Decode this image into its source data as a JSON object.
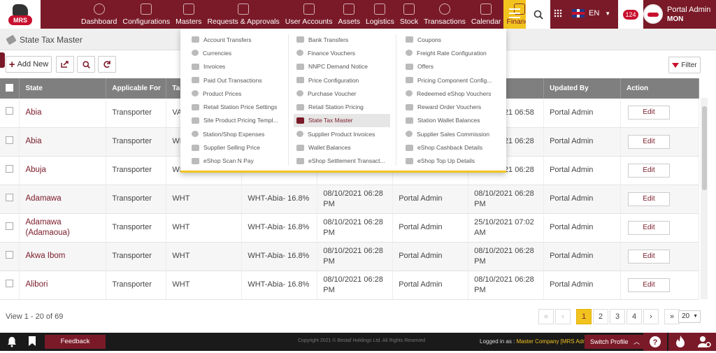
{
  "nav": {
    "items": [
      "Dashboard",
      "Configurations",
      "Masters",
      "Requests & Approvals",
      "User Accounts",
      "Assets",
      "Logistics",
      "Stock",
      "Transactions",
      "Calendar",
      "Finance"
    ],
    "active": "Finance",
    "lang": "EN",
    "notif_count": "124",
    "user_name": "Portal Admin",
    "user_role": "MON",
    "logo_text": "MRS"
  },
  "breadcrumb": {
    "title": "State Tax Master"
  },
  "toolbar": {
    "add_label": "Add New",
    "filter_label": "Filter"
  },
  "table": {
    "headers": [
      "",
      "State",
      "Applicable For",
      "Ta",
      "",
      "",
      "",
      "ate",
      "Updated By",
      "Action"
    ],
    "rows": [
      {
        "state": "Abia",
        "for": "Transporter",
        "tax": "VA",
        "name": "",
        "c_date": "",
        "c_by": "",
        "u_date": "08/10/2021 06:58",
        "u_by": "Portal Admin",
        "action": "Edit"
      },
      {
        "state": "Abia",
        "for": "Transporter",
        "tax": "WH",
        "name": "",
        "c_date": "",
        "c_by": "",
        "u_date": "08/10/2021 06:28",
        "u_by": "Portal Admin",
        "action": "Edit"
      },
      {
        "state": "Abuja",
        "for": "Transporter",
        "tax": "WH",
        "name": "",
        "c_date": "",
        "c_by": "",
        "u_date": "08/10/2021 06:28",
        "u_by": "Portal Admin",
        "action": "Edit"
      },
      {
        "state": "Adamawa",
        "for": "Transporter",
        "tax": "WHT",
        "name": "WHT-Abia- 16.8%",
        "c_date": "08/10/2021 06:28 PM",
        "c_by": "Portal Admin",
        "u_date": "08/10/2021 06:28 PM",
        "u_by": "Portal Admin",
        "action": "Edit"
      },
      {
        "state": "Adamawa (Adamaoua)",
        "for": "Transporter",
        "tax": "WHT",
        "name": "WHT-Abia- 16.8%",
        "c_date": "08/10/2021 06:28 PM",
        "c_by": "Portal Admin",
        "u_date": "25/10/2021 07:02 AM",
        "u_by": "Portal Admin",
        "action": "Edit"
      },
      {
        "state": "Akwa Ibom",
        "for": "Transporter",
        "tax": "WHT",
        "name": "WHT-Abia- 16.8%",
        "c_date": "08/10/2021 06:28 PM",
        "c_by": "Portal Admin",
        "u_date": "08/10/2021 06:28 PM",
        "u_by": "Portal Admin",
        "action": "Edit"
      },
      {
        "state": "Alibori",
        "for": "Transporter",
        "tax": "WHT",
        "name": "WHT-Abia- 16.8%",
        "c_date": "08/10/2021 06:28 PM",
        "c_by": "Portal Admin",
        "u_date": "08/10/2021 06:28 PM",
        "u_by": "Portal Admin",
        "action": "Edit"
      }
    ]
  },
  "pagination": {
    "info": "View 1 - 20 of 69",
    "first": "«",
    "prev": "‹",
    "pages": [
      "1",
      "2",
      "3",
      "4"
    ],
    "current": "1",
    "next": "›",
    "last": "»",
    "page_size": "20"
  },
  "dropdown": {
    "col1": [
      "Account Transfers",
      "Currencies",
      "Invoices",
      "Paid Out Transactions",
      "Product Prices",
      "Retail Station Price Settings",
      "Site Product Pricing Templ...",
      "Station/Shop Expenses",
      "Supplier Selling Price",
      "eShop Scan N Pay"
    ],
    "col2": [
      "Bank Transfers",
      "Finance Vouchers",
      "NNPC Demand Notice",
      "Price Configuration",
      "Purchase Voucher",
      "Retail Station Pricing",
      "State Tax Master",
      "Supplier Product Invoices",
      "Wallet Balances",
      "eShop Settlement Transact..."
    ],
    "col3": [
      "Coupons",
      "Freight Rate Configuration",
      "Offers",
      "Pricing Component Config...",
      "Redeemed eShop Vouchers",
      "Reward Order Vouchers",
      "Station Wallet Balances",
      "Supplier Sales Commission",
      "eShop Cashback Details",
      "eShop Top Up Details"
    ],
    "selected": "State Tax Master"
  },
  "footer": {
    "feedback": "Feedback",
    "copyright": "Copyright 2021 © Bestaf Holdings Ltd. All Rights Reserved",
    "logged_label": "Logged in as :",
    "logged_value": "Master Company [MRS Admin]",
    "switch": "Switch Profile"
  },
  "colors": {
    "brand": "#7a1a28",
    "accent": "#f2c31f"
  }
}
